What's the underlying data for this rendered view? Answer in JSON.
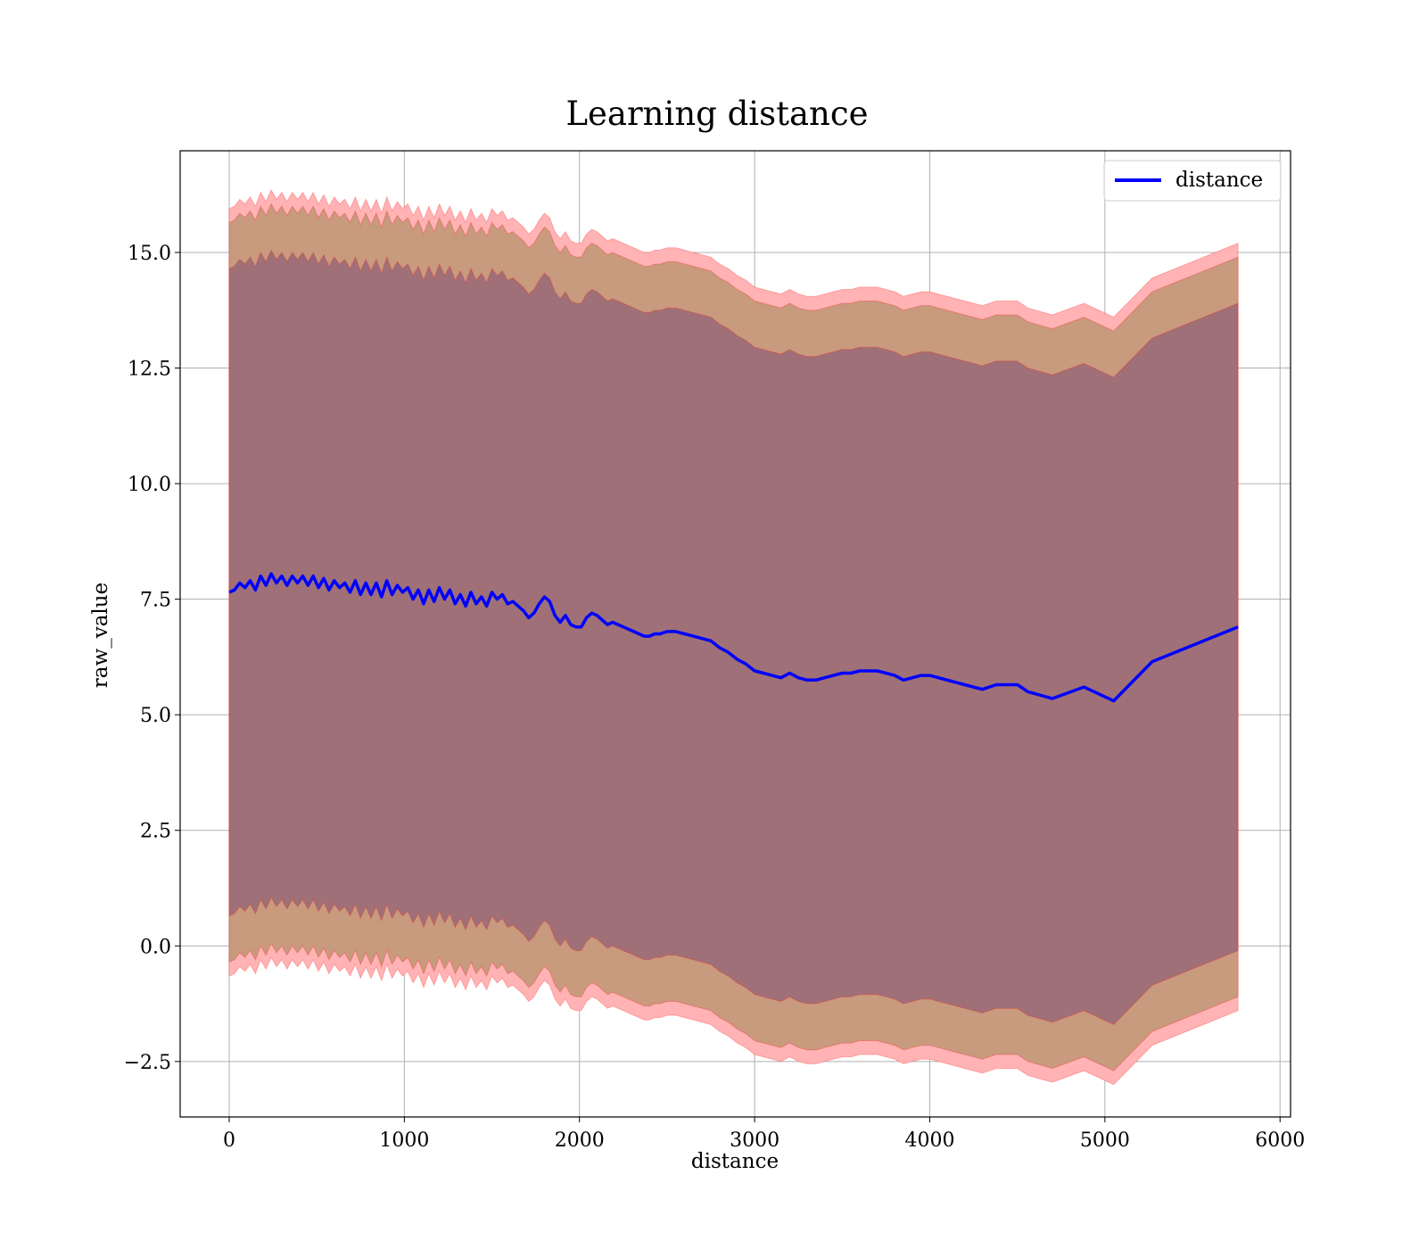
{
  "chart_data": {
    "type": "line",
    "title": "Learning distance",
    "xlabel": "distance",
    "ylabel": "raw_value",
    "xlim": [
      -280,
      6060
    ],
    "ylim": [
      -3.7,
      17.2
    ],
    "xticks": [
      0,
      1000,
      2000,
      3000,
      4000,
      5000,
      6000
    ],
    "xtick_labels": [
      "0",
      "1000",
      "2000",
      "3000",
      "4000",
      "5000",
      "6000"
    ],
    "yticks": [
      -2.5,
      0.0,
      2.5,
      5.0,
      7.5,
      10.0,
      12.5,
      15.0
    ],
    "ytick_labels": [
      "−2.5",
      "0.0",
      "2.5",
      "5.0",
      "7.5",
      "10.0",
      "12.5",
      "15.0"
    ],
    "grid": true,
    "legend": {
      "position": "top-right",
      "entries": [
        "distance"
      ]
    },
    "colors": {
      "line": "#0000ff",
      "band": "#ff0000",
      "band_outer": "#ffb3b5",
      "band_mid": "#c89a7e",
      "band_inner": "#a07078",
      "axes": "#000000",
      "grid": "#b0b0b0"
    },
    "band_offsets": [
      7.0,
      8.0,
      8.3
    ],
    "series": [
      {
        "name": "distance",
        "x": [
          0,
          30,
          60,
          90,
          120,
          150,
          180,
          210,
          240,
          270,
          300,
          330,
          360,
          390,
          420,
          450,
          480,
          510,
          540,
          570,
          600,
          630,
          660,
          690,
          720,
          750,
          780,
          810,
          840,
          870,
          900,
          930,
          960,
          990,
          1020,
          1050,
          1080,
          1110,
          1140,
          1170,
          1200,
          1230,
          1260,
          1290,
          1320,
          1350,
          1380,
          1410,
          1440,
          1470,
          1500,
          1530,
          1560,
          1590,
          1620,
          1650,
          1680,
          1710,
          1740,
          1770,
          1800,
          1830,
          1860,
          1890,
          1920,
          1950,
          1980,
          2010,
          2040,
          2070,
          2100,
          2130,
          2160,
          2190,
          2220,
          2250,
          2280,
          2310,
          2340,
          2370,
          2400,
          2430,
          2460,
          2500,
          2550,
          2600,
          2650,
          2700,
          2750,
          2800,
          2850,
          2900,
          2950,
          3000,
          3050,
          3100,
          3150,
          3200,
          3250,
          3300,
          3350,
          3400,
          3450,
          3500,
          3550,
          3600,
          3650,
          3700,
          3750,
          3800,
          3850,
          3900,
          3950,
          4000,
          4050,
          4100,
          4150,
          4200,
          4300,
          4380,
          4500,
          4560,
          4700,
          4880,
          5050,
          5270,
          5760
        ],
        "values": [
          7.65,
          7.7,
          7.85,
          7.75,
          7.9,
          7.7,
          8.0,
          7.8,
          8.05,
          7.85,
          8.0,
          7.8,
          8.0,
          7.85,
          8.0,
          7.8,
          8.0,
          7.75,
          7.95,
          7.7,
          7.9,
          7.75,
          7.85,
          7.65,
          7.9,
          7.6,
          7.85,
          7.6,
          7.85,
          7.55,
          7.9,
          7.6,
          7.8,
          7.65,
          7.75,
          7.5,
          7.7,
          7.4,
          7.7,
          7.45,
          7.75,
          7.5,
          7.7,
          7.4,
          7.6,
          7.35,
          7.65,
          7.4,
          7.55,
          7.35,
          7.65,
          7.5,
          7.6,
          7.4,
          7.45,
          7.35,
          7.25,
          7.1,
          7.2,
          7.4,
          7.55,
          7.45,
          7.15,
          7.0,
          7.15,
          6.95,
          6.9,
          6.9,
          7.1,
          7.2,
          7.15,
          7.05,
          6.95,
          7.0,
          6.95,
          6.9,
          6.85,
          6.8,
          6.75,
          6.7,
          6.7,
          6.75,
          6.75,
          6.8,
          6.8,
          6.75,
          6.7,
          6.65,
          6.6,
          6.45,
          6.35,
          6.2,
          6.1,
          5.95,
          5.9,
          5.85,
          5.8,
          5.9,
          5.8,
          5.75,
          5.75,
          5.8,
          5.85,
          5.9,
          5.9,
          5.95,
          5.95,
          5.95,
          5.9,
          5.85,
          5.75,
          5.8,
          5.85,
          5.85,
          5.8,
          5.75,
          5.7,
          5.65,
          5.55,
          5.65,
          5.65,
          5.5,
          5.35,
          5.6,
          5.3,
          6.15,
          6.9
        ]
      }
    ]
  }
}
